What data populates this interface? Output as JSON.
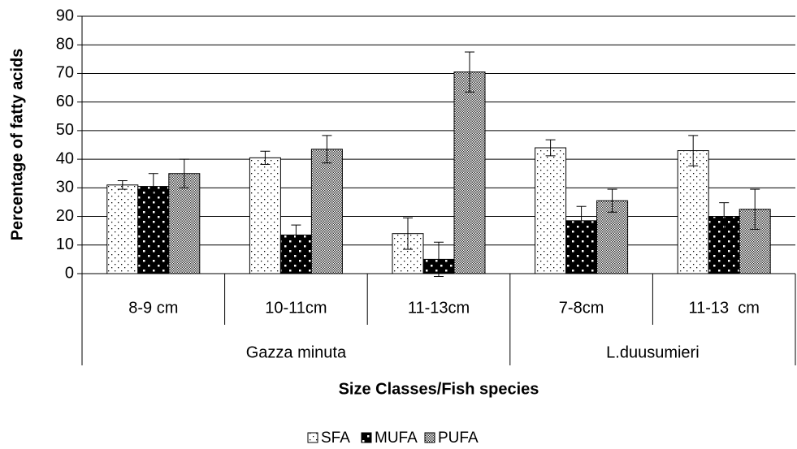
{
  "chart_data": {
    "type": "bar",
    "x_label": "Size Classes/Fish species",
    "y_label": "Percentage of fatty acids",
    "categories": [
      "8-9 cm",
      "10-11cm",
      "11-13cm",
      "7-8cm",
      "11-13  cm"
    ],
    "groups": [
      {
        "label": "Gazza minuta",
        "span": 3
      },
      {
        "label": "L.duusumieri",
        "span": 2
      }
    ],
    "series": [
      {
        "name": "SFA",
        "color": "#ffffff",
        "values": [
          31,
          40.5,
          14,
          44,
          43
        ],
        "errors": [
          1.5,
          2.3,
          5.5,
          2.8,
          5.3
        ]
      },
      {
        "name": "MUFA",
        "color": "#000000",
        "values": [
          30.5,
          13.5,
          5,
          18.5,
          20
        ],
        "errors": [
          4.5,
          3.5,
          6,
          5,
          4.8
        ]
      },
      {
        "name": "PUFA",
        "color": "#808080",
        "values": [
          35,
          43.5,
          70.5,
          25.5,
          22.5
        ],
        "errors": [
          5,
          4.8,
          7,
          4,
          7
        ]
      }
    ],
    "ylim": [
      0,
      90
    ],
    "yticks": [
      0,
      10,
      20,
      30,
      40,
      50,
      60,
      70,
      80,
      90
    ],
    "grid": true,
    "legend": "bottom"
  }
}
